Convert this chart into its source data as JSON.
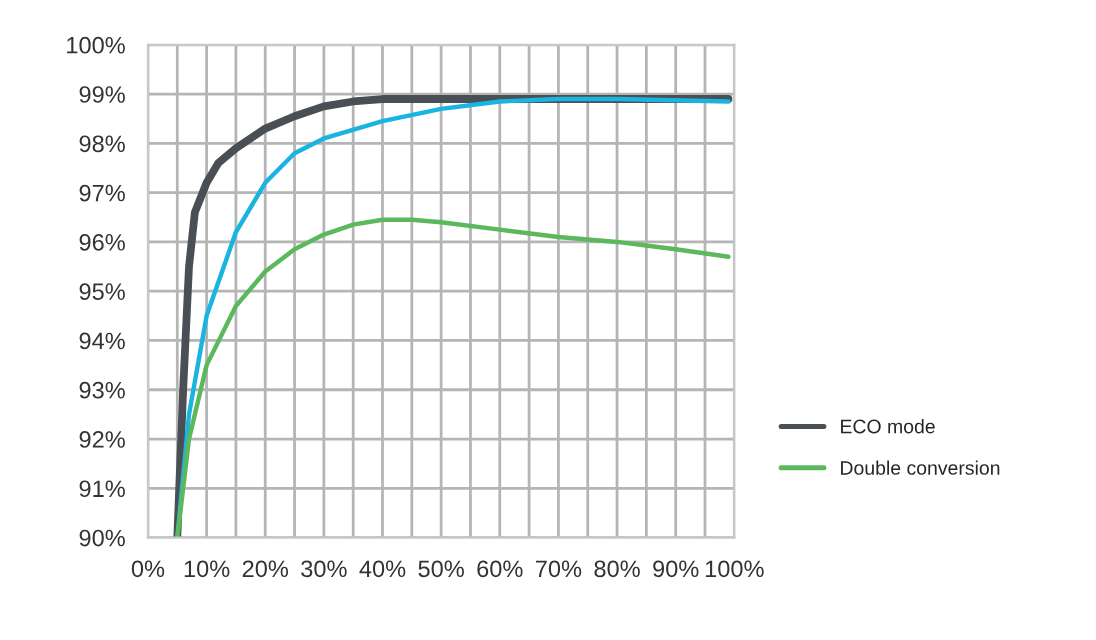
{
  "chart_data": {
    "type": "line",
    "xlim": [
      0,
      100
    ],
    "xticks": [
      {
        "value": 0,
        "label": "0%"
      },
      {
        "value": 5,
        "label": null
      },
      {
        "value": 10,
        "label": "10%"
      },
      {
        "value": 15,
        "label": null
      },
      {
        "value": 20,
        "label": "20%"
      },
      {
        "value": 25,
        "label": null
      },
      {
        "value": 30,
        "label": "30%"
      },
      {
        "value": 35,
        "label": null
      },
      {
        "value": 40,
        "label": "40%"
      },
      {
        "value": 45,
        "label": null
      },
      {
        "value": 50,
        "label": "50%"
      },
      {
        "value": 55,
        "label": null
      },
      {
        "value": 60,
        "label": "60%"
      },
      {
        "value": 65,
        "label": null
      },
      {
        "value": 70,
        "label": "70%"
      },
      {
        "value": 75,
        "label": null
      },
      {
        "value": 80,
        "label": "80%"
      },
      {
        "value": 85,
        "label": null
      },
      {
        "value": 90,
        "label": "90%"
      },
      {
        "value": 95,
        "label": null
      },
      {
        "value": 100,
        "label": "100%"
      }
    ],
    "ylim": [
      90,
      100
    ],
    "yticks": [
      {
        "value": 90,
        "label": "90%"
      },
      {
        "value": 91,
        "label": "91%"
      },
      {
        "value": 92,
        "label": "92%"
      },
      {
        "value": 93,
        "label": "93%"
      },
      {
        "value": 94,
        "label": "94%"
      },
      {
        "value": 95,
        "label": "95%"
      },
      {
        "value": 96,
        "label": "96%"
      },
      {
        "value": 97,
        "label": "97%"
      },
      {
        "value": 98,
        "label": "98%"
      },
      {
        "value": 99,
        "label": "99%"
      },
      {
        "value": 100,
        "label": "100%"
      }
    ],
    "grid": true,
    "legend": "right",
    "marker": "none",
    "line_style": "solid",
    "series": [
      {
        "name": "ECO mode",
        "color": "#4a4f55",
        "x": [
          5,
          6,
          7,
          8,
          10,
          12,
          15,
          20,
          25,
          30,
          35,
          40,
          60,
          80,
          99
        ],
        "values": [
          90,
          93,
          95.5,
          96.6,
          97.2,
          97.6,
          97.9,
          98.3,
          98.55,
          98.75,
          98.85,
          98.9,
          98.9,
          98.9,
          98.9
        ]
      },
      {
        "color": "#1ab4e0",
        "x": [
          5,
          7,
          10,
          15,
          20,
          25,
          30,
          40,
          50,
          60,
          70,
          80,
          99
        ],
        "values": [
          90,
          92.5,
          94.5,
          96.2,
          97.2,
          97.8,
          98.1,
          98.45,
          98.7,
          98.85,
          98.9,
          98.9,
          98.85
        ]
      },
      {
        "name": "Double conversion",
        "color": "#5cb85c",
        "x": [
          5,
          7,
          10,
          15,
          20,
          25,
          30,
          35,
          40,
          45,
          50,
          60,
          70,
          80,
          90,
          99
        ],
        "values": [
          90,
          92,
          93.5,
          94.7,
          95.4,
          95.85,
          96.15,
          96.35,
          96.45,
          96.45,
          96.4,
          96.25,
          96.1,
          96.0,
          95.85,
          95.7
        ]
      }
    ]
  }
}
